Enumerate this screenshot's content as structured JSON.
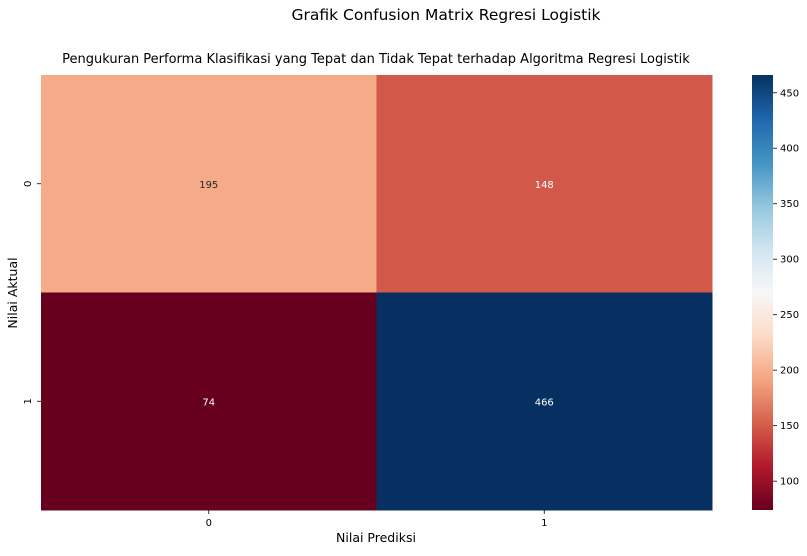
{
  "chart_data": {
    "type": "heatmap",
    "suptitle": "Grafik Confusion Matrix Regresi Logistik",
    "title": "Pengukuran Performa Klasifikasi yang Tepat dan Tidak Tepat terhadap Algoritma Regresi Logistik",
    "xlabel": "Nilai Prediksi",
    "ylabel": "Nilai Aktual",
    "x_categories": [
      "0",
      "1"
    ],
    "y_categories": [
      "0",
      "1"
    ],
    "values": [
      [
        195,
        148
      ],
      [
        74,
        466
      ]
    ],
    "colormap": "RdBu",
    "vmin": 74,
    "vmax": 466,
    "colorbar_ticks": [
      100,
      150,
      200,
      250,
      300,
      350,
      400,
      450
    ],
    "annotation_colors": {
      "dark_text": "#262626",
      "light_text": "#ffffff"
    }
  }
}
